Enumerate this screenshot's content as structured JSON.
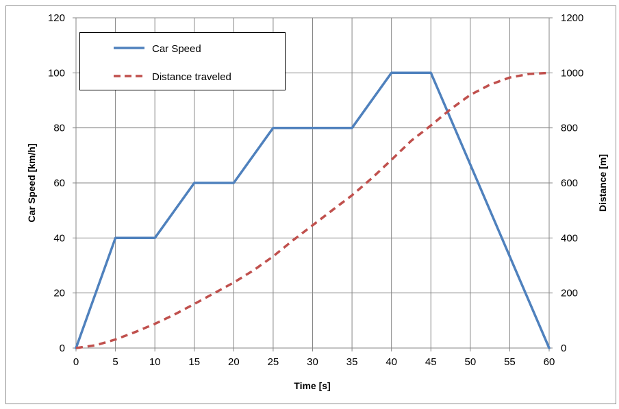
{
  "chart_data": {
    "type": "line",
    "xlabel": "Time [s]",
    "ylabel_left": "Car Speed  [km/h]",
    "ylabel_right": "Distance [m]",
    "xlim": [
      0,
      60
    ],
    "ylim_left": [
      0,
      120
    ],
    "ylim_right": [
      0,
      1200
    ],
    "x_ticks": [
      "0",
      "5",
      "10",
      "15",
      "20",
      "25",
      "30",
      "35",
      "40",
      "45",
      "50",
      "55",
      "60"
    ],
    "y_left_ticks": [
      "0",
      "20",
      "40",
      "60",
      "80",
      "100",
      "120"
    ],
    "y_right_ticks": [
      "0",
      "200",
      "400",
      "600",
      "800",
      "1000",
      "1200"
    ],
    "grid": true,
    "legend_position": "top-left",
    "series": [
      {
        "name": "Car Speed",
        "axis": "left",
        "color": "#4f81bd",
        "style": "solid",
        "x": [
          0,
          5,
          5.5,
          9.5,
          10,
          15,
          15.5,
          19.5,
          20,
          25,
          25.5,
          34.5,
          35,
          40,
          40.5,
          44.5,
          45,
          50,
          55,
          60
        ],
        "y": [
          0,
          40,
          40,
          40,
          40,
          60,
          60,
          60,
          60,
          80,
          80,
          80,
          80,
          100,
          100,
          100,
          100,
          66.7,
          33.3,
          0
        ]
      },
      {
        "name": "Distance traveled",
        "axis": "right",
        "color": "#c0504d",
        "style": "dashed",
        "x": [
          0,
          2.5,
          5,
          7.5,
          10,
          12.5,
          15,
          17.5,
          20,
          22.5,
          25,
          27.5,
          30,
          32.5,
          35,
          37.5,
          40,
          42.5,
          45,
          47.5,
          50,
          52.5,
          55,
          57.5,
          60
        ],
        "y": [
          0,
          10,
          31,
          58,
          88,
          122,
          160,
          199,
          238,
          282,
          333,
          391,
          446,
          501,
          555,
          617,
          684,
          753,
          809,
          868,
          920,
          957,
          983,
          996,
          1000
        ]
      }
    ]
  }
}
